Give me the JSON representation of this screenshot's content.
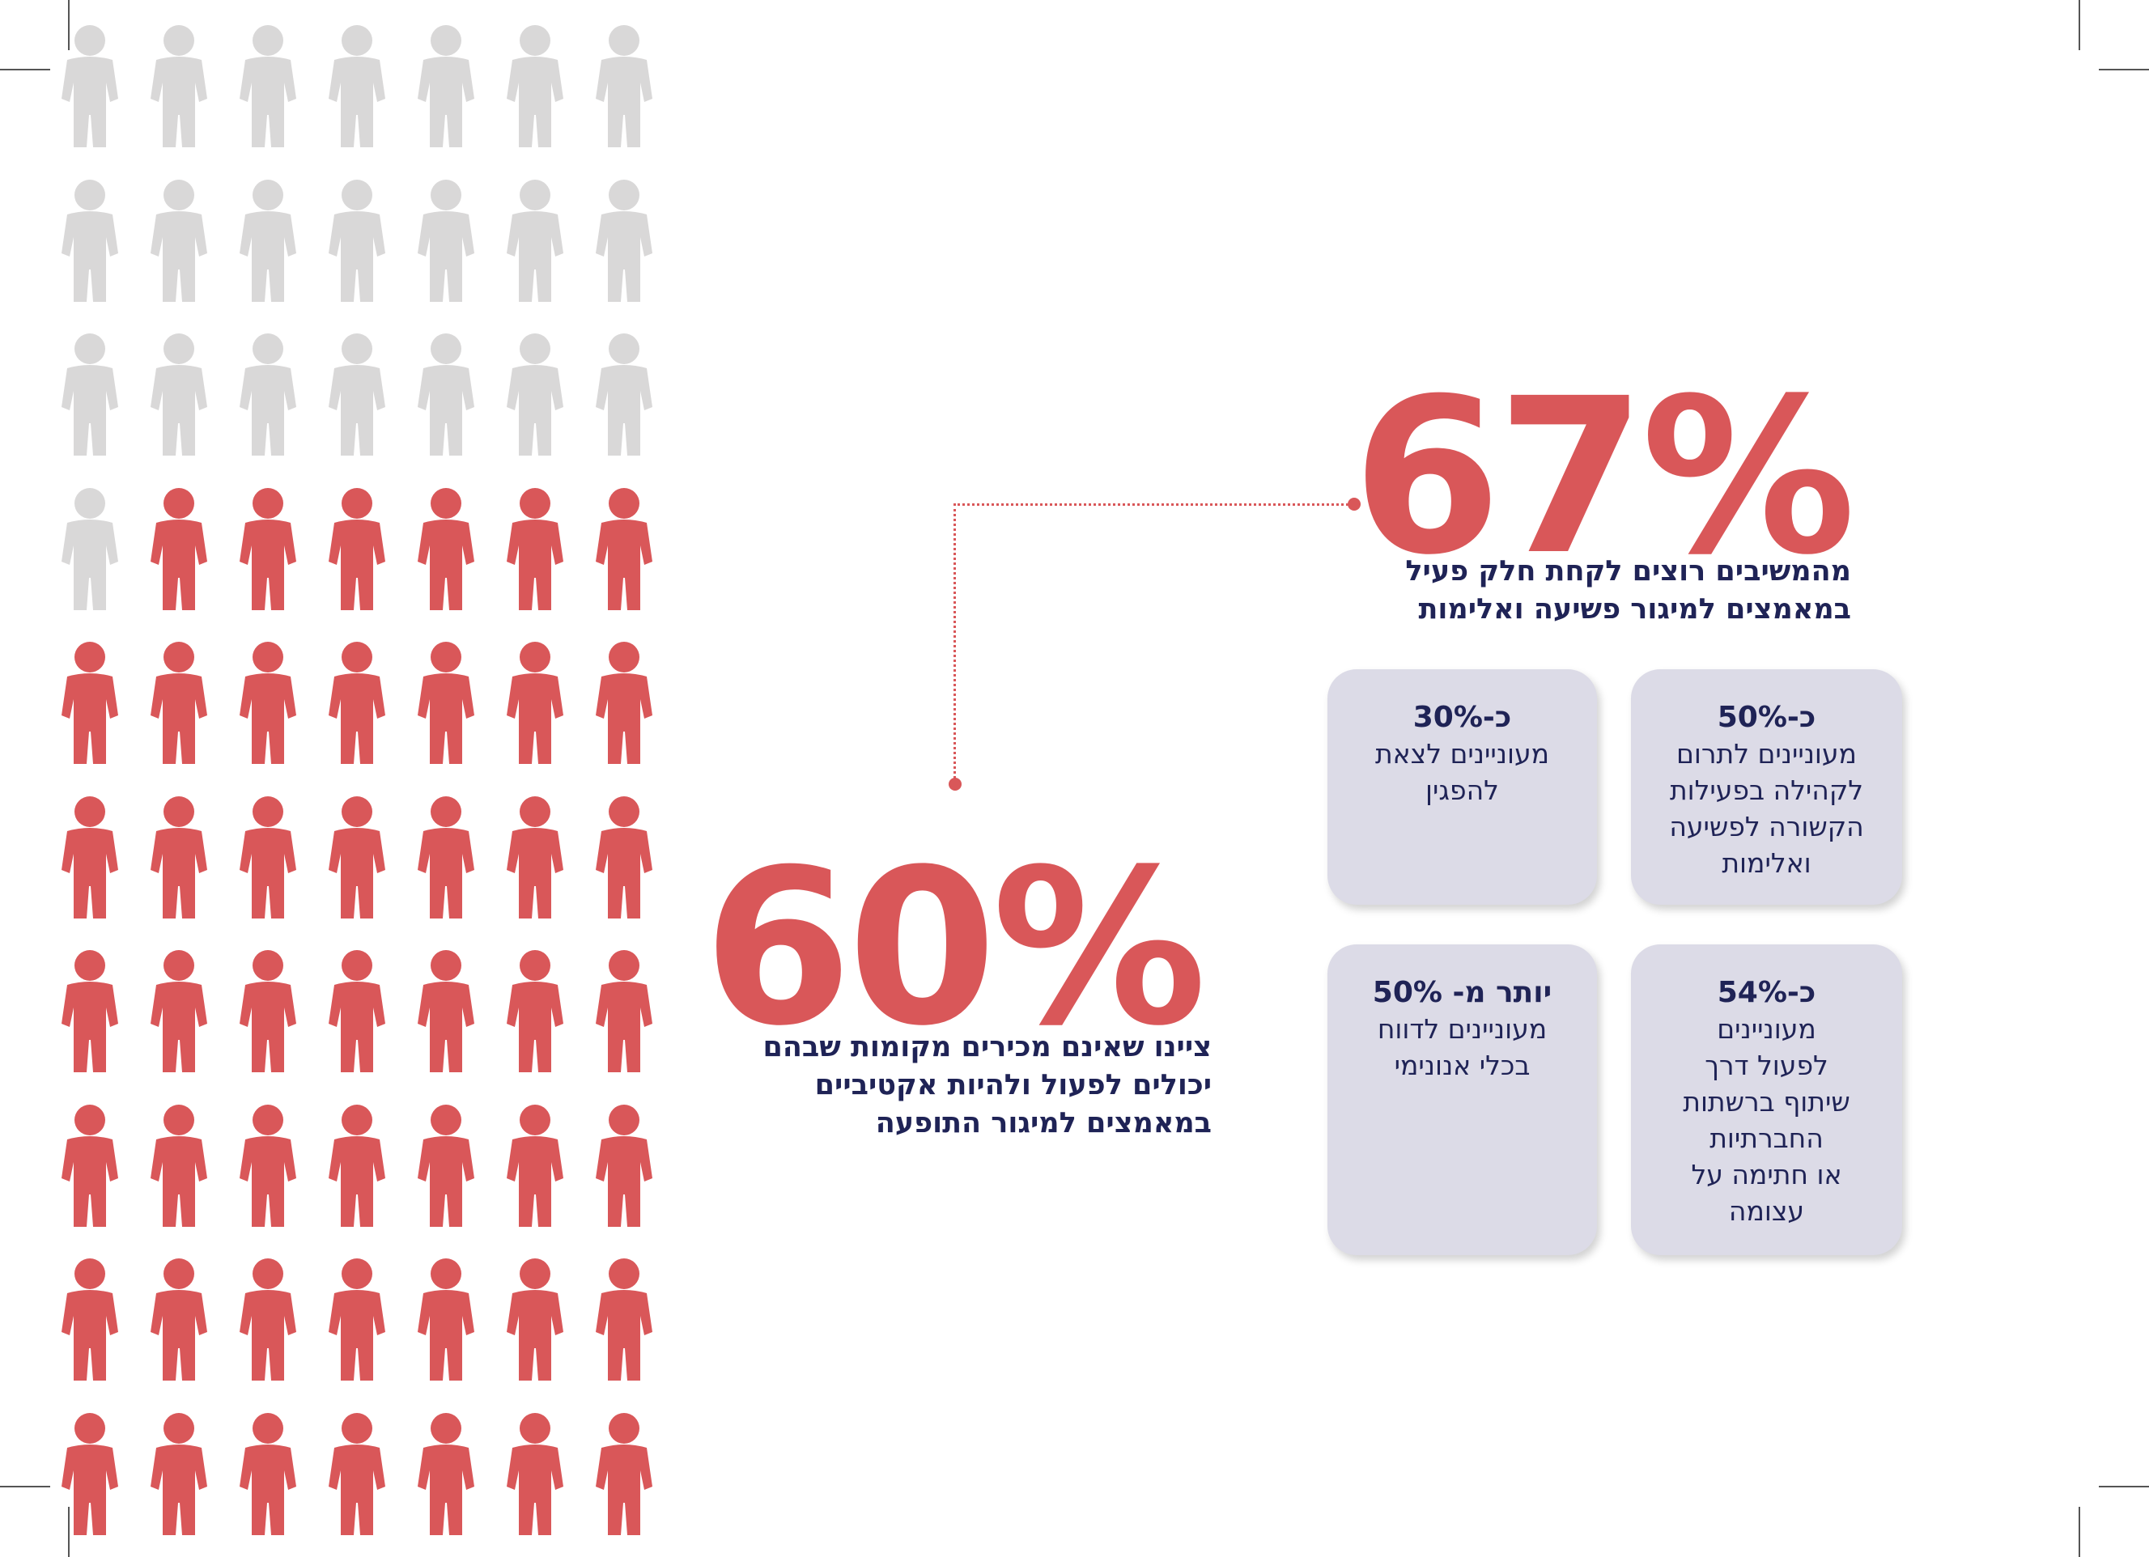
{
  "colors": {
    "accent_red": "#d95759",
    "neutral_grey": "#d9d8d8",
    "navy_text": "#1f2356",
    "card_background": "#dcdbe7"
  },
  "icon": "person-icon",
  "people_grid": {
    "rows": 10,
    "columns": 7,
    "grey_count": 22,
    "red_count": 48
  },
  "stat_67": {
    "value": "67%",
    "caption_line1": "מהמשיבים רוצים לקחת חלק פעיל",
    "caption_line2": "במאמצים למיגור פשיעה ואלימות"
  },
  "stat_60": {
    "value": "60%",
    "caption_line1": "ציינו שאינם מכירים מקומות שבהם",
    "caption_line2": "יכולים לפעול ולהיות אקטיביים",
    "caption_line3": "במאמצים למיגור התופעה"
  },
  "cards": {
    "donate": {
      "pct": "כ-50%",
      "line1": "מעוניינים לתרום",
      "line2": "לקהילה בפעילות",
      "line3": "הקשורה לפשיעה",
      "line4": "ואלימות"
    },
    "protest": {
      "pct": "כ-30%",
      "line1": "מעוניינים לצאת",
      "line2": "להפגין"
    },
    "social": {
      "pct": "כ-54%",
      "line1": "מעוניינים",
      "line2": "לפעול דרך",
      "line3": "שיתוף ברשתות",
      "line4": "החברתיות",
      "line5": "או חתימה על",
      "line6": "עצומה"
    },
    "report": {
      "pct": "יותר מ- 50%",
      "line1": "מעוניינים לדווח",
      "line2": "בכלי אנונימי"
    }
  }
}
